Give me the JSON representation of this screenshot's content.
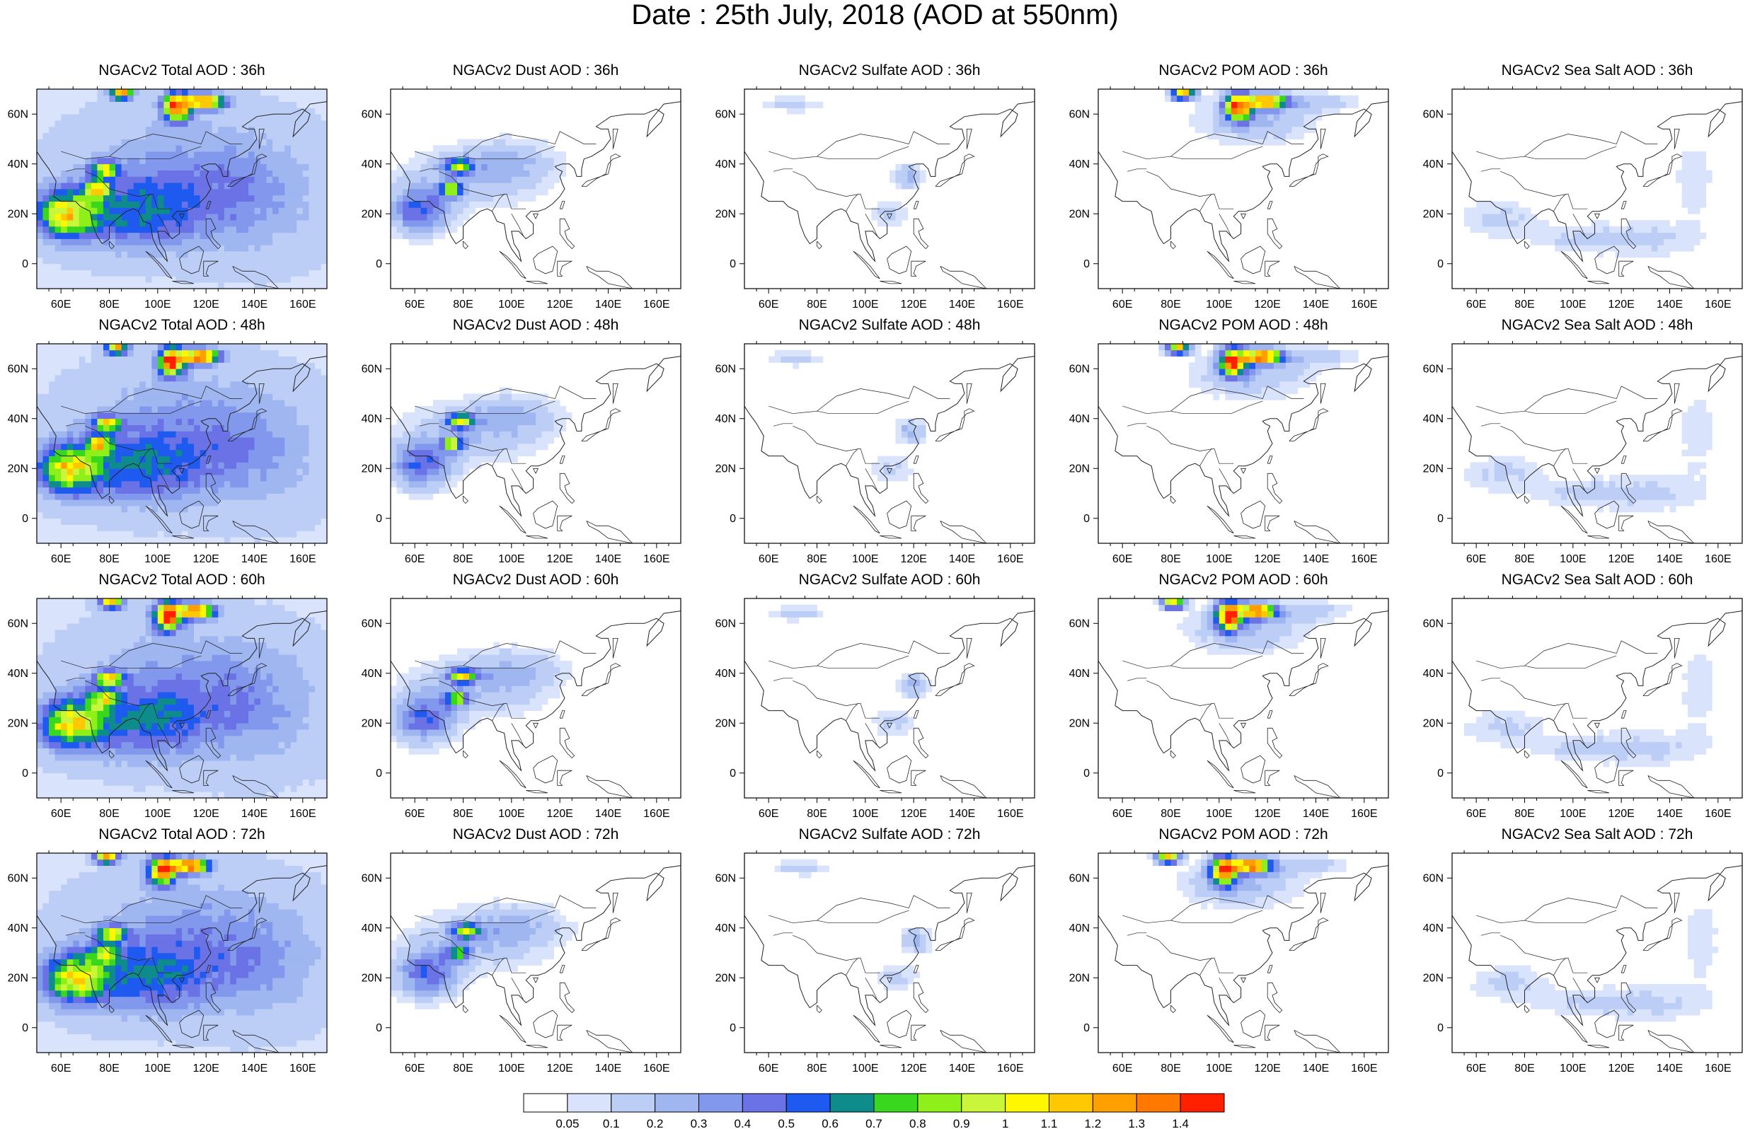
{
  "title": "Date : 25th July, 2018 (AOD at 550nm)",
  "lat_labels": [
    "60N",
    "40N",
    "20N",
    "0"
  ],
  "lat_values": [
    60,
    40,
    20,
    0
  ],
  "lon_labels": [
    "60E",
    "80E",
    "100E",
    "120E",
    "140E",
    "160E"
  ],
  "lon_values": [
    60,
    80,
    100,
    120,
    140,
    160
  ],
  "map_extent": {
    "lon": [
      50,
      170
    ],
    "lat": [
      -10,
      70
    ]
  },
  "panels": [
    {
      "title": "NGACv2 Total AOD : 36h",
      "species": "total",
      "hour": "36h"
    },
    {
      "title": "NGACv2 Dust AOD : 36h",
      "species": "dust",
      "hour": "36h"
    },
    {
      "title": "NGACv2 Sulfate AOD : 36h",
      "species": "sulfate",
      "hour": "36h"
    },
    {
      "title": "NGACv2 POM AOD : 36h",
      "species": "pom",
      "hour": "36h"
    },
    {
      "title": "NGACv2 Sea Salt AOD : 36h",
      "species": "seasalt",
      "hour": "36h"
    },
    {
      "title": "NGACv2 Total AOD : 48h",
      "species": "total",
      "hour": "48h"
    },
    {
      "title": "NGACv2 Dust AOD : 48h",
      "species": "dust",
      "hour": "48h"
    },
    {
      "title": "NGACv2 Sulfate AOD : 48h",
      "species": "sulfate",
      "hour": "48h"
    },
    {
      "title": "NGACv2 POM AOD : 48h",
      "species": "pom",
      "hour": "48h"
    },
    {
      "title": "NGACv2 Sea Salt AOD : 48h",
      "species": "seasalt",
      "hour": "48h"
    },
    {
      "title": "NGACv2 Total AOD : 60h",
      "species": "total",
      "hour": "60h"
    },
    {
      "title": "NGACv2 Dust AOD : 60h",
      "species": "dust",
      "hour": "60h"
    },
    {
      "title": "NGACv2 Sulfate AOD : 60h",
      "species": "sulfate",
      "hour": "60h"
    },
    {
      "title": "NGACv2 POM AOD : 60h",
      "species": "pom",
      "hour": "60h"
    },
    {
      "title": "NGACv2 Sea Salt AOD : 60h",
      "species": "seasalt",
      "hour": "60h"
    },
    {
      "title": "NGACv2 Total AOD : 72h",
      "species": "total",
      "hour": "72h"
    },
    {
      "title": "NGACv2 Dust AOD : 72h",
      "species": "dust",
      "hour": "72h"
    },
    {
      "title": "NGACv2 Sulfate AOD : 72h",
      "species": "sulfate",
      "hour": "72h"
    },
    {
      "title": "NGACv2 POM AOD : 72h",
      "species": "pom",
      "hour": "72h"
    },
    {
      "title": "NGACv2 Sea Salt  AOD : 72h",
      "species": "seasalt",
      "hour": "72h"
    }
  ],
  "colorbar": {
    "labels": [
      "0.05",
      "0.1",
      "0.2",
      "0.3",
      "0.4",
      "0.5",
      "0.6",
      "0.7",
      "0.8",
      "0.9",
      "1",
      "1.1",
      "1.2",
      "1.3",
      "1.4"
    ],
    "colors": [
      "#ffffff",
      "#d9e3fb",
      "#bccdf6",
      "#9fb6f1",
      "#8198ec",
      "#6a72e6",
      "#1e5af0",
      "#0e8b8b",
      "#39d81f",
      "#8fef18",
      "#c9f53a",
      "#fff700",
      "#ffc800",
      "#ffa000",
      "#ff7800",
      "#ff2000"
    ]
  },
  "plumes": {
    "total": [
      {
        "lon": 62,
        "lat": 20,
        "rlon": 13,
        "rlat": 10,
        "v": 0.85
      },
      {
        "lon": 78,
        "lat": 38,
        "rlon": 6,
        "rlat": 3,
        "v": 0.9
      },
      {
        "lon": 75,
        "lat": 30,
        "rlon": 6,
        "rlat": 4,
        "v": 0.7
      },
      {
        "lon": 108,
        "lat": 63,
        "rlon": 6,
        "rlat": 6,
        "v": 1.35
      },
      {
        "lon": 120,
        "lat": 65,
        "rlon": 8,
        "rlat": 3,
        "v": 1.3
      },
      {
        "lon": 85,
        "lat": 68,
        "rlon": 5,
        "rlat": 2,
        "v": 1.3
      },
      {
        "lon": 90,
        "lat": 20,
        "rlon": 30,
        "rlat": 15,
        "v": 0.4
      },
      {
        "lon": 110,
        "lat": 35,
        "rlon": 45,
        "rlat": 25,
        "v": 0.25
      },
      {
        "lon": 140,
        "lat": 25,
        "rlon": 30,
        "rlat": 25,
        "v": 0.15
      }
    ],
    "dust": [
      {
        "lon": 62,
        "lat": 22,
        "rlon": 13,
        "rlat": 10,
        "v": 0.5
      },
      {
        "lon": 78,
        "lat": 39,
        "rlon": 6,
        "rlat": 3,
        "v": 0.9
      },
      {
        "lon": 75,
        "lat": 30,
        "rlon": 5,
        "rlat": 3,
        "v": 0.75
      },
      {
        "lon": 85,
        "lat": 35,
        "rlon": 30,
        "rlat": 12,
        "v": 0.2
      },
      {
        "lon": 100,
        "lat": 42,
        "rlon": 20,
        "rlat": 8,
        "v": 0.15
      }
    ],
    "sulfate": [
      {
        "lon": 118,
        "lat": 35,
        "rlon": 6,
        "rlat": 5,
        "v": 0.25
      },
      {
        "lon": 70,
        "lat": 64,
        "rlon": 12,
        "rlat": 3,
        "v": 0.15
      },
      {
        "lon": 110,
        "lat": 20,
        "rlon": 10,
        "rlat": 6,
        "v": 0.12
      }
    ],
    "pom": [
      {
        "lon": 108,
        "lat": 63,
        "rlon": 6,
        "rlat": 6,
        "v": 1.35
      },
      {
        "lon": 120,
        "lat": 65,
        "rlon": 8,
        "rlat": 3,
        "v": 1.3
      },
      {
        "lon": 85,
        "lat": 68,
        "rlon": 5,
        "rlat": 2,
        "v": 1.3
      },
      {
        "lon": 115,
        "lat": 58,
        "rlon": 25,
        "rlat": 10,
        "v": 0.2
      },
      {
        "lon": 140,
        "lat": 65,
        "rlon": 20,
        "rlat": 4,
        "v": 0.15
      }
    ],
    "seasalt": [
      {
        "lon": 70,
        "lat": 18,
        "rlon": 18,
        "rlat": 8,
        "v": 0.12
      },
      {
        "lon": 130,
        "lat": 10,
        "rlon": 25,
        "rlat": 8,
        "v": 0.12
      },
      {
        "lon": 100,
        "lat": 10,
        "rlon": 20,
        "rlat": 6,
        "v": 0.1
      },
      {
        "lon": 150,
        "lat": 35,
        "rlon": 10,
        "rlat": 20,
        "v": 0.08
      }
    ]
  }
}
